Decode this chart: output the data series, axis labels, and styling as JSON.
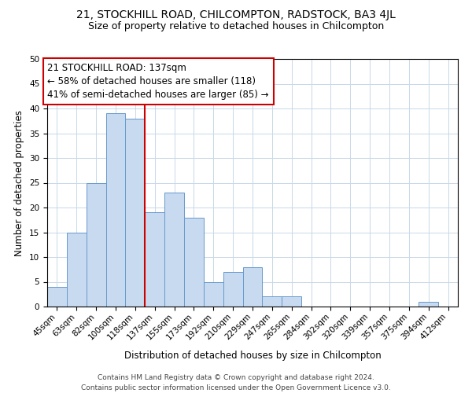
{
  "title": "21, STOCKHILL ROAD, CHILCOMPTON, RADSTOCK, BA3 4JL",
  "subtitle": "Size of property relative to detached houses in Chilcompton",
  "xlabel": "Distribution of detached houses by size in Chilcompton",
  "ylabel": "Number of detached properties",
  "footer_line1": "Contains HM Land Registry data © Crown copyright and database right 2024.",
  "footer_line2": "Contains public sector information licensed under the Open Government Licence v3.0.",
  "bin_labels": [
    "45sqm",
    "63sqm",
    "82sqm",
    "100sqm",
    "118sqm",
    "137sqm",
    "155sqm",
    "173sqm",
    "192sqm",
    "210sqm",
    "229sqm",
    "247sqm",
    "265sqm",
    "284sqm",
    "302sqm",
    "320sqm",
    "339sqm",
    "357sqm",
    "375sqm",
    "394sqm",
    "412sqm"
  ],
  "bar_values": [
    4,
    15,
    25,
    39,
    38,
    19,
    23,
    18,
    5,
    7,
    8,
    2,
    2,
    0,
    0,
    0,
    0,
    0,
    0,
    1,
    0
  ],
  "bar_color": "#c8daf0",
  "bar_edge_color": "#6699cc",
  "vline_x_index": 5,
  "vline_color": "#cc0000",
  "ann_line1": "21 STOCKHILL ROAD: 137sqm",
  "ann_line2": "← 58% of detached houses are smaller (118)",
  "ann_line3": "41% of semi-detached houses are larger (85) →",
  "annotation_box_edge_color": "#cc0000",
  "ylim_min": 0,
  "ylim_max": 50,
  "yticks": [
    0,
    5,
    10,
    15,
    20,
    25,
    30,
    35,
    40,
    45,
    50
  ],
  "background_color": "#ffffff",
  "grid_color": "#c8d8e8",
  "title_fontsize": 10,
  "subtitle_fontsize": 9,
  "axis_label_fontsize": 8.5,
  "tick_fontsize": 7.5,
  "annotation_fontsize": 8.5,
  "footer_fontsize": 6.5
}
